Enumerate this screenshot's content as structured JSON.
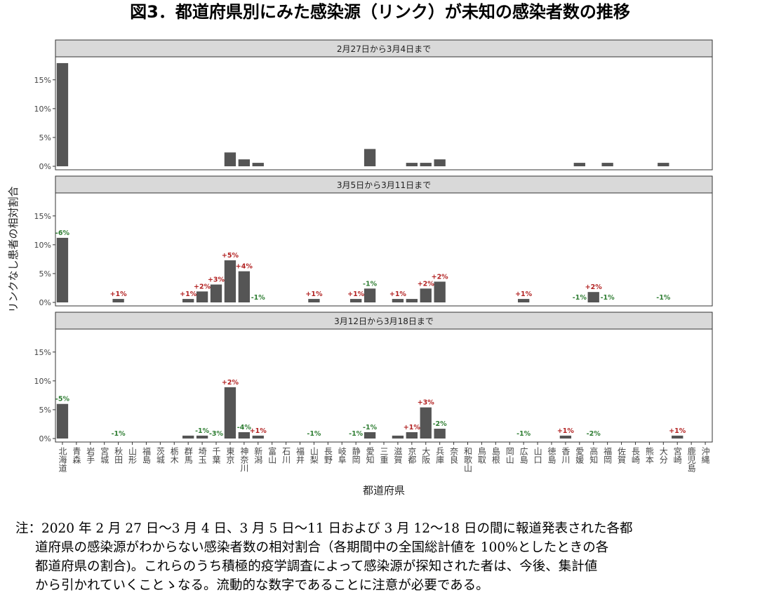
{
  "title": "図3．都道府県別にみた感染源（リンク）が未知の感染者数の推移",
  "note": [
    "注：2020 年 2 月 27 日〜3 月 4 日、3 月 5 日〜11 日および 3 月 12〜18 日の間に報道発表された各都",
    "道府県の感染源がわからない感染者数の相対割合（各期間中の全国総計値を 100%としたときの各",
    "都道府県の割合)。これらのうち積極的疫学調査によって感染源が探知された者は、今後、集計値",
    "から引かれていくことゝなる。流動的な数字であることに注意が必要である。"
  ],
  "colors": {
    "bar": "#555555",
    "positive": "#b22222",
    "negative": "#2e7d32",
    "strip": "#d9d9d9"
  },
  "chart_data": {
    "type": "bar",
    "xlabel": "都道府県",
    "ylabel": "リンクなし患者の相対割合",
    "ylim": [
      0,
      18.5
    ],
    "yticks": [
      0,
      5,
      10,
      15
    ],
    "ytick_labels": [
      "0%",
      "5%",
      "10%",
      "15%"
    ],
    "grid": false,
    "categories": [
      "北海道",
      "青森",
      "岩手",
      "宮城",
      "秋田",
      "山形",
      "福島",
      "茨城",
      "栃木",
      "群馬",
      "埼玉",
      "千葉",
      "東京",
      "神奈川",
      "新潟",
      "富山",
      "石川",
      "福井",
      "山梨",
      "長野",
      "岐阜",
      "静岡",
      "愛知",
      "三重",
      "滋賀",
      "京都",
      "大阪",
      "兵庫",
      "奈良",
      "和歌山",
      "鳥取",
      "島根",
      "岡山",
      "広島",
      "山口",
      "徳島",
      "香川",
      "愛媛",
      "高知",
      "福岡",
      "佐賀",
      "長崎",
      "熊本",
      "大分",
      "宮崎",
      "鹿児島",
      "沖縄"
    ],
    "panels": [
      {
        "strip": "2月27日から3月4日まで",
        "values": {
          "北海道": 17.9,
          "東京": 2.4,
          "神奈川": 1.2,
          "新潟": 0.6,
          "愛知": 3.0,
          "京都": 0.6,
          "大阪": 0.6,
          "兵庫": 1.2,
          "愛媛": 0.6,
          "福岡": 0.6,
          "大分": 0.6
        },
        "changes": {}
      },
      {
        "strip": "3月5日から3月11日まで",
        "values": {
          "北海道": 11.2,
          "秋田": 0.6,
          "群馬": 0.6,
          "埼玉": 1.9,
          "千葉": 3.1,
          "東京": 7.3,
          "神奈川": 5.4,
          "山梨": 0.6,
          "静岡": 0.6,
          "愛知": 2.4,
          "滋賀": 0.6,
          "京都": 0.6,
          "大阪": 2.4,
          "兵庫": 3.6,
          "広島": 0.6,
          "高知": 1.8
        },
        "changes": {
          "北海道": "-6%",
          "秋田": "+1%",
          "群馬": "+1%",
          "埼玉": "+2%",
          "千葉": "+3%",
          "東京": "+5%",
          "神奈川": "+4%",
          "新潟": "-1%",
          "山梨": "+1%",
          "静岡": "+1%",
          "愛知": "-1%",
          "滋賀": "+1%",
          "大阪": "+2%",
          "兵庫": "+2%",
          "広島": "+1%",
          "愛媛": "-1%",
          "高知": "+2%",
          "福岡": "-1%",
          "大分": "-1%"
        }
      },
      {
        "strip": "3月12日から3月18日まで",
        "values": {
          "北海道": 6.0,
          "群馬": 0.5,
          "埼玉": 0.5,
          "東京": 8.9,
          "神奈川": 1.1,
          "新潟": 0.5,
          "愛知": 1.1,
          "滋賀": 0.5,
          "京都": 1.1,
          "大阪": 5.4,
          "兵庫": 1.7,
          "香川": 0.5,
          "宮崎": 0.5
        },
        "changes": {
          "北海道": "-5%",
          "秋田": "-1%",
          "埼玉": "-1%",
          "千葉": "-3%",
          "東京": "+2%",
          "神奈川": "-4%",
          "新潟": "+1%",
          "山梨": "-1%",
          "静岡": "-1%",
          "愛知": "-1%",
          "京都": "+1%",
          "大阪": "+3%",
          "兵庫": "-2%",
          "広島": "-1%",
          "香川": "+1%",
          "高知": "-2%",
          "宮崎": "+1%"
        }
      }
    ]
  }
}
